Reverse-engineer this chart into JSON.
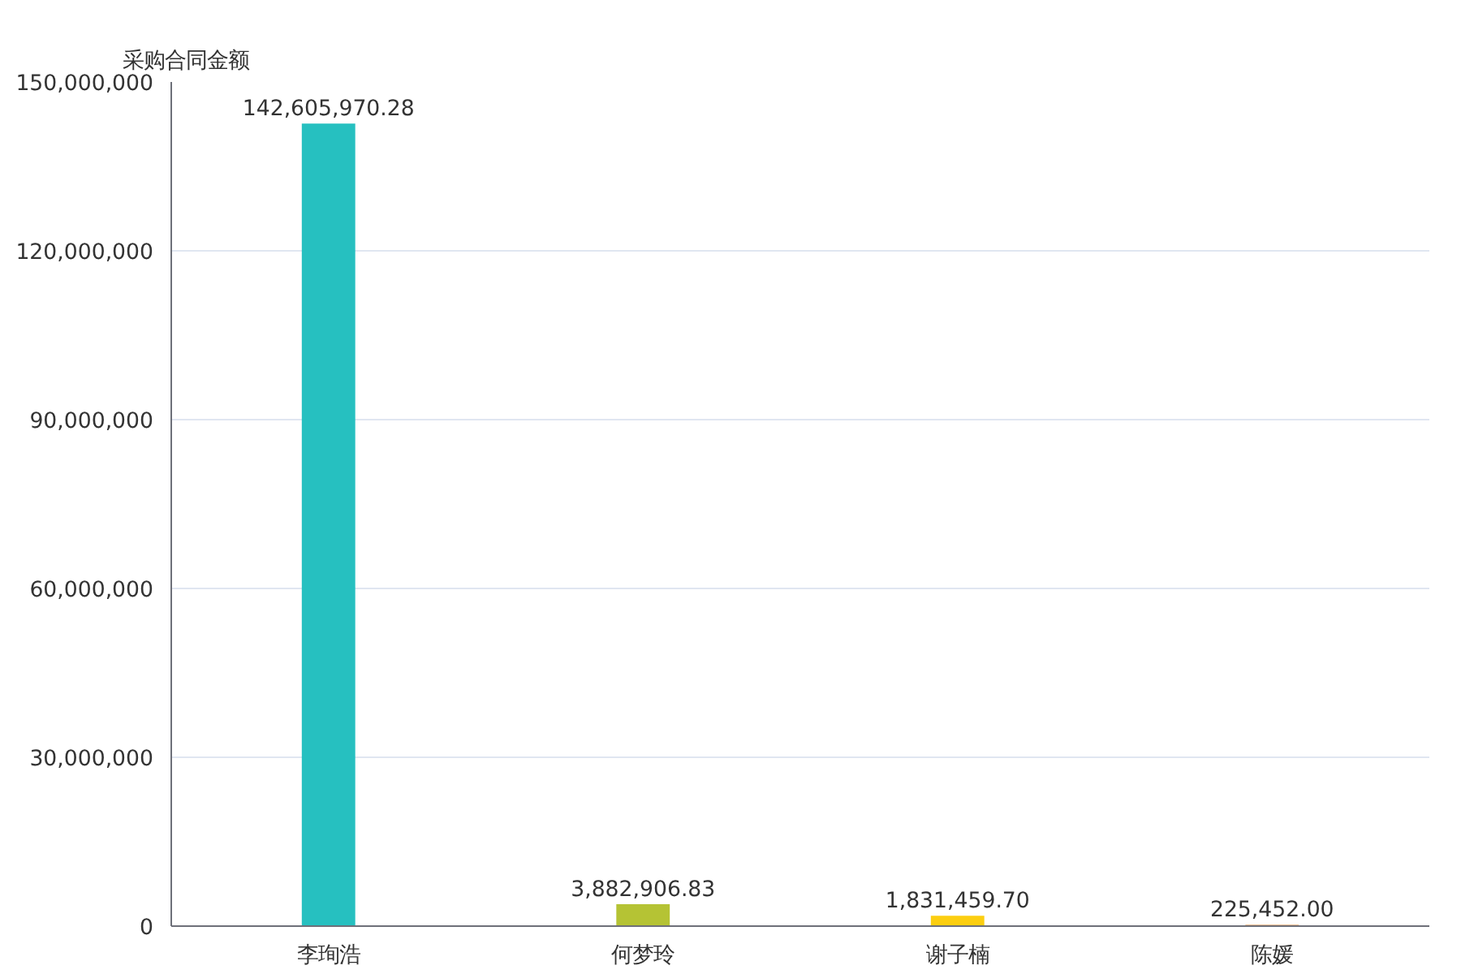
{
  "chart_data": {
    "type": "bar",
    "ylabel": "采购合同金额",
    "categories": [
      "李珣浩",
      "何梦玲",
      "谢子楠",
      "陈媛"
    ],
    "values": [
      142605970.28,
      3882906.83,
      1831459.7,
      225452.0
    ],
    "colors": [
      "#26c0c0",
      "#b5c334",
      "#fcce10",
      "#e87c25"
    ],
    "value_labels": [
      "142,605,970.28",
      "3,882,906.83",
      "1,831,459.70",
      "225,452.00"
    ],
    "ylim": [
      0,
      150000000
    ],
    "yticks": [
      {
        "value": 0,
        "label": "0"
      },
      {
        "value": 30000000,
        "label": "30,000,000"
      },
      {
        "value": 60000000,
        "label": "60,000,000"
      },
      {
        "value": 90000000,
        "label": "90,000,000"
      },
      {
        "value": 120000000,
        "label": "120,000,000"
      },
      {
        "value": 150000000,
        "label": "150,000,000"
      }
    ],
    "grid": "y"
  }
}
